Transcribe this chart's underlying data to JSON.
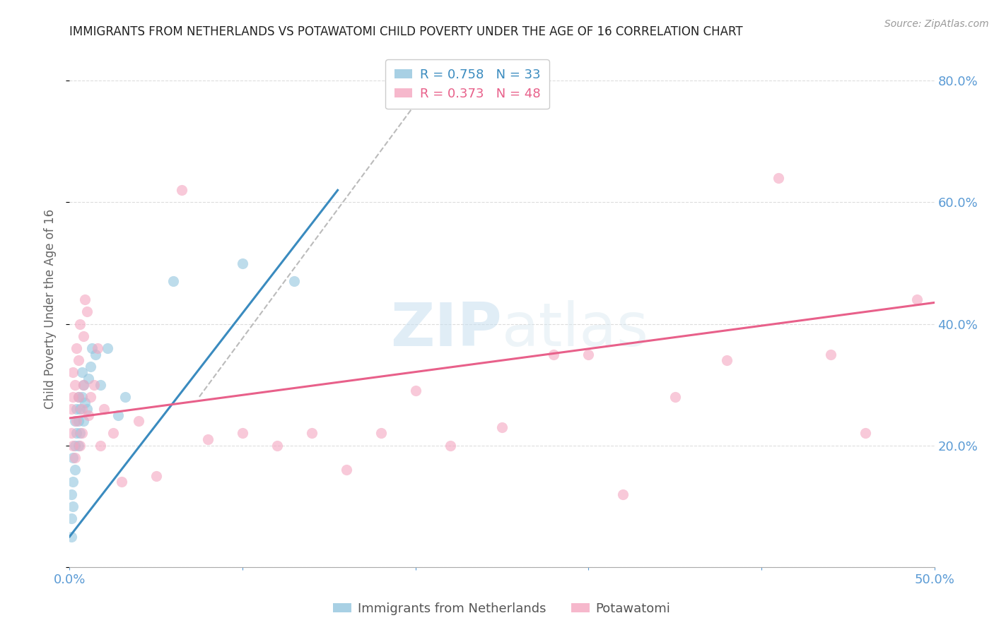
{
  "title": "IMMIGRANTS FROM NETHERLANDS VS POTAWATOMI CHILD POVERTY UNDER THE AGE OF 16 CORRELATION CHART",
  "source": "Source: ZipAtlas.com",
  "ylabel": "Child Poverty Under the Age of 16",
  "xlim": [
    0.0,
    0.5
  ],
  "ylim": [
    0.0,
    0.85
  ],
  "x_ticks": [
    0.0,
    0.1,
    0.2,
    0.3,
    0.4,
    0.5
  ],
  "y_ticks": [
    0.0,
    0.2,
    0.4,
    0.6,
    0.8
  ],
  "y_tick_labels": [
    "",
    "20.0%",
    "40.0%",
    "60.0%",
    "80.0%"
  ],
  "x_tick_labels": [
    "0.0%",
    "",
    "",
    "",
    "",
    "50.0%"
  ],
  "legend_blue_label": "R = 0.758   N = 33",
  "legend_pink_label": "R = 0.373   N = 48",
  "legend_label_blue": "Immigrants from Netherlands",
  "legend_label_pink": "Potawatomi",
  "color_blue": "#92c5de",
  "color_pink": "#f4a6c0",
  "color_line_blue": "#3a8bbf",
  "color_line_pink": "#e8608a",
  "color_dashed": "#bbbbbb",
  "watermark_zip": "ZIP",
  "watermark_atlas": "atlas",
  "title_color": "#222222",
  "axis_label_color": "#666666",
  "tick_color_right": "#5b9bd5",
  "tick_color_bottom": "#5b9bd5",
  "blue_points_x": [
    0.001,
    0.001,
    0.001,
    0.002,
    0.002,
    0.002,
    0.003,
    0.003,
    0.003,
    0.004,
    0.004,
    0.005,
    0.005,
    0.005,
    0.006,
    0.006,
    0.007,
    0.007,
    0.008,
    0.008,
    0.009,
    0.01,
    0.011,
    0.012,
    0.013,
    0.015,
    0.018,
    0.022,
    0.028,
    0.032,
    0.06,
    0.1,
    0.13
  ],
  "blue_points_y": [
    0.05,
    0.08,
    0.12,
    0.1,
    0.14,
    0.18,
    0.2,
    0.24,
    0.16,
    0.22,
    0.26,
    0.2,
    0.24,
    0.28,
    0.22,
    0.26,
    0.28,
    0.32,
    0.24,
    0.3,
    0.27,
    0.26,
    0.31,
    0.33,
    0.36,
    0.35,
    0.3,
    0.36,
    0.25,
    0.28,
    0.47,
    0.5,
    0.47
  ],
  "pink_points_x": [
    0.001,
    0.001,
    0.002,
    0.002,
    0.002,
    0.003,
    0.003,
    0.004,
    0.004,
    0.005,
    0.005,
    0.006,
    0.006,
    0.007,
    0.007,
    0.008,
    0.008,
    0.009,
    0.01,
    0.011,
    0.012,
    0.014,
    0.016,
    0.018,
    0.02,
    0.025,
    0.03,
    0.04,
    0.05,
    0.065,
    0.08,
    0.1,
    0.12,
    0.14,
    0.16,
    0.18,
    0.2,
    0.22,
    0.25,
    0.28,
    0.3,
    0.32,
    0.35,
    0.38,
    0.41,
    0.44,
    0.46,
    0.49
  ],
  "pink_points_y": [
    0.26,
    0.22,
    0.2,
    0.28,
    0.32,
    0.18,
    0.3,
    0.36,
    0.24,
    0.28,
    0.34,
    0.2,
    0.4,
    0.26,
    0.22,
    0.38,
    0.3,
    0.44,
    0.42,
    0.25,
    0.28,
    0.3,
    0.36,
    0.2,
    0.26,
    0.22,
    0.14,
    0.24,
    0.15,
    0.62,
    0.21,
    0.22,
    0.2,
    0.22,
    0.16,
    0.22,
    0.29,
    0.2,
    0.23,
    0.35,
    0.35,
    0.12,
    0.28,
    0.34,
    0.64,
    0.35,
    0.22,
    0.44
  ],
  "blue_line_x": [
    0.0,
    0.155
  ],
  "blue_line_y": [
    0.05,
    0.62
  ],
  "pink_line_x": [
    0.0,
    0.5
  ],
  "pink_line_y": [
    0.245,
    0.435
  ],
  "dashed_line_x": [
    0.075,
    0.215
  ],
  "dashed_line_y": [
    0.28,
    0.82
  ],
  "background_color": "#ffffff",
  "grid_color": "#dddddd"
}
